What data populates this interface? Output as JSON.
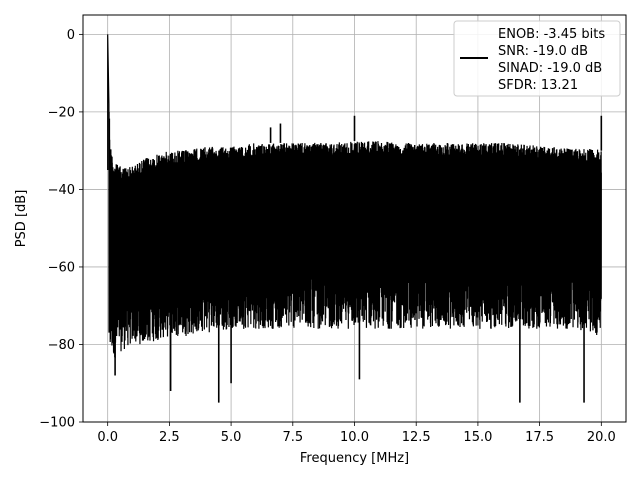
{
  "chart_data": {
    "type": "line",
    "title": "",
    "xlabel": "Frequency [MHz]",
    "ylabel": "PSD [dB]",
    "xlim": [
      -1,
      21
    ],
    "ylim": [
      -100,
      5
    ],
    "x_ticks": [
      0.0,
      2.5,
      5.0,
      7.5,
      10.0,
      12.5,
      15.0,
      17.5,
      20.0
    ],
    "x_tick_labels": [
      "0.0",
      "2.5",
      "5.0",
      "7.5",
      "10.0",
      "12.5",
      "15.0",
      "17.5",
      "20.0"
    ],
    "y_ticks": [
      0,
      -20,
      -40,
      -60,
      -80,
      -100
    ],
    "y_tick_labels": [
      "0",
      "−20",
      "−40",
      "−60",
      "−80",
      "−100"
    ],
    "grid": true,
    "legend_position": "top-right",
    "line_color": "#000000",
    "legend": {
      "lines": [
        "ENOB: -3.45 bits",
        "SNR: -19.0 dB",
        "SINAD: -19.0 dB",
        "SFDR: 13.21"
      ]
    },
    "series": [
      {
        "envelope_upper": {
          "x": [
            0.0,
            0.1,
            0.25,
            0.5,
            1.0,
            1.5,
            2.0,
            2.5,
            3.0,
            4.0,
            5.0,
            6.0,
            7.0,
            8.0,
            9.0,
            10.0,
            11.0,
            12.0,
            13.0,
            14.0,
            15.0,
            16.0,
            17.0,
            18.0,
            19.0,
            19.8,
            20.0
          ],
          "y": [
            0,
            -28,
            -33,
            -34,
            -34,
            -32,
            -31,
            -30,
            -30,
            -29,
            -29,
            -28,
            -28,
            -28,
            -28,
            -27.5,
            -27.5,
            -28,
            -28,
            -28,
            -28,
            -28,
            -28.5,
            -29,
            -29.5,
            -29.5,
            -30
          ]
        },
        "envelope_lower": {
          "x": [
            0.0,
            0.25,
            0.5,
            1.0,
            1.5,
            2.0,
            2.5,
            3.0,
            4.0,
            5.0,
            6.0,
            7.0,
            8.0,
            9.0,
            10.0,
            11.0,
            12.0,
            13.0,
            14.0,
            15.0,
            16.0,
            17.0,
            18.0,
            19.0,
            20.0
          ],
          "y": [
            -74,
            -76,
            -74,
            -72,
            -72,
            -71,
            -70,
            -70,
            -69,
            -68,
            -68,
            -68,
            -68,
            -68,
            -68,
            -68,
            -68,
            -68,
            -68,
            -68,
            -68,
            -68,
            -68,
            -68,
            -70
          ]
        },
        "spikes": [
          {
            "x": 0.0,
            "y": 0
          },
          {
            "x": 6.6,
            "y": -24
          },
          {
            "x": 7.0,
            "y": -23
          },
          {
            "x": 10.0,
            "y": -21
          },
          {
            "x": 20.0,
            "y": -21
          },
          {
            "x": 2.55,
            "y": -92
          },
          {
            "x": 4.5,
            "y": -95
          },
          {
            "x": 5.0,
            "y": -90
          },
          {
            "x": 10.2,
            "y": -89
          },
          {
            "x": 16.7,
            "y": -95
          },
          {
            "x": 19.3,
            "y": -95
          },
          {
            "x": 0.3,
            "y": -88
          }
        ]
      }
    ]
  }
}
